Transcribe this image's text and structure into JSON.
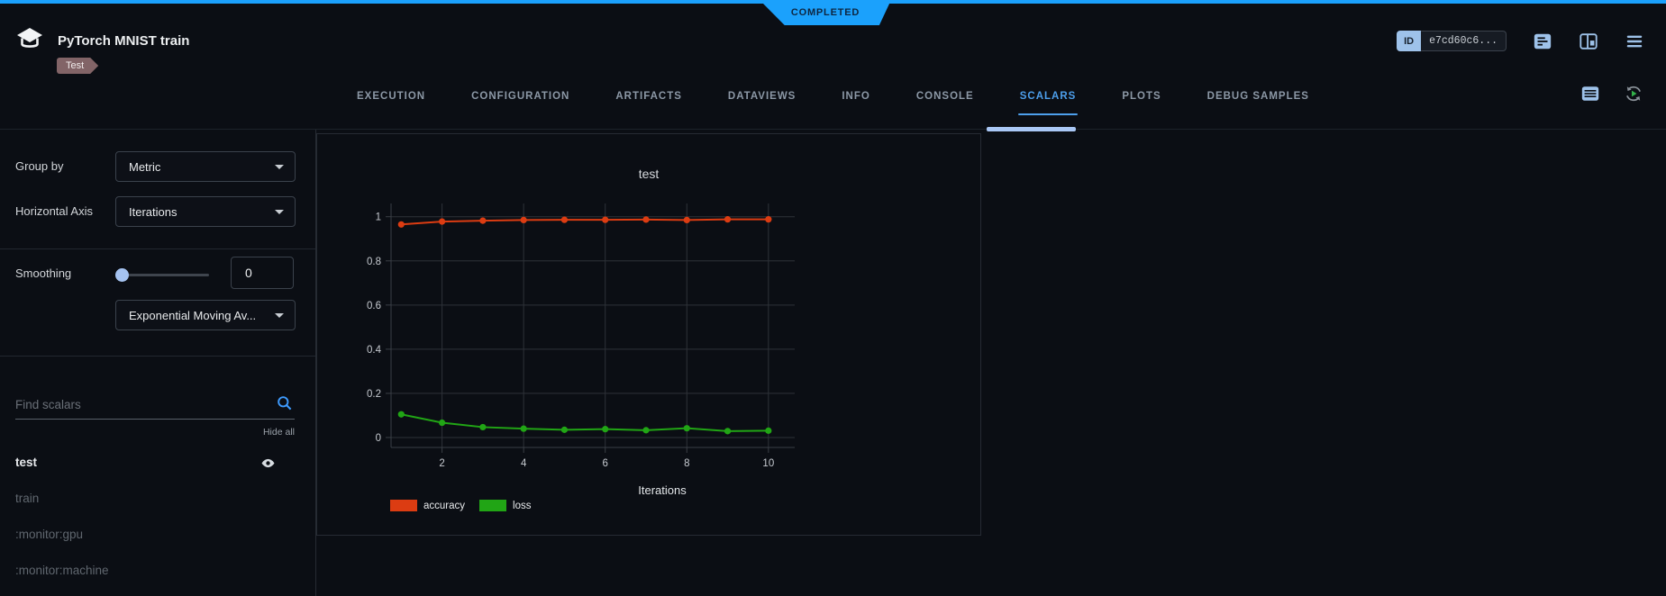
{
  "colors": {
    "accent_blue": "#1ba1fc",
    "active_tab_blue": "#4d9fec",
    "icon_blue": "#9ec2ea",
    "scrollbar_blue": "#a9c7f5",
    "tag_bg": "#826467",
    "grid": "#2e3238"
  },
  "status_banner": {
    "label": "COMPLETED"
  },
  "header": {
    "title": "PyTorch MNIST train",
    "tag": "Test",
    "id_badge": {
      "label": "ID",
      "value": "e7cd60c6..."
    },
    "action_icons": [
      "details-panel-icon",
      "layout-columns-icon",
      "menu-icon"
    ]
  },
  "tabs": {
    "items": [
      "EXECUTION",
      "CONFIGURATION",
      "ARTIFACTS",
      "DATAVIEWS",
      "INFO",
      "CONSOLE",
      "SCALARS",
      "PLOTS",
      "DEBUG SAMPLES"
    ],
    "active": "SCALARS",
    "right_icons": [
      "table-view-icon",
      "auto-refresh-icon"
    ]
  },
  "sidebar": {
    "group_by": {
      "label": "Group by",
      "value": "Metric"
    },
    "horizontal_axis": {
      "label": "Horizontal Axis",
      "value": "Iterations"
    },
    "smoothing": {
      "label": "Smoothing",
      "value": "0",
      "method": "Exponential Moving Av..."
    },
    "search": {
      "placeholder": "Find scalars"
    },
    "hide_all_label": "Hide all",
    "metrics": [
      {
        "name": "test",
        "visible": true
      },
      {
        "name": "train",
        "visible": false
      },
      {
        "name": ":monitor:gpu",
        "visible": false
      },
      {
        "name": ":monitor:machine",
        "visible": false
      }
    ]
  },
  "chart_data": {
    "type": "line",
    "title": "test",
    "xlabel": "Iterations",
    "ylabel": "",
    "x": [
      1,
      2,
      3,
      4,
      5,
      6,
      7,
      8,
      9,
      10
    ],
    "series": [
      {
        "name": "accuracy",
        "color": "#dc3c12",
        "values": [
          0.965,
          0.978,
          0.982,
          0.985,
          0.986,
          0.986,
          0.987,
          0.985,
          0.988,
          0.988
        ]
      },
      {
        "name": "loss",
        "color": "#21a515",
        "values": [
          0.105,
          0.067,
          0.047,
          0.04,
          0.035,
          0.038,
          0.033,
          0.042,
          0.029,
          0.031
        ]
      }
    ],
    "xticks": [
      2,
      4,
      6,
      8,
      10
    ],
    "yticks": [
      0,
      0.2,
      0.4,
      0.6,
      0.8,
      1
    ],
    "xlim": [
      0.75,
      10.6
    ],
    "ylim": [
      -0.045,
      1.06
    ],
    "grid": true,
    "legend_position": "bottom-left",
    "marker": "circle"
  }
}
